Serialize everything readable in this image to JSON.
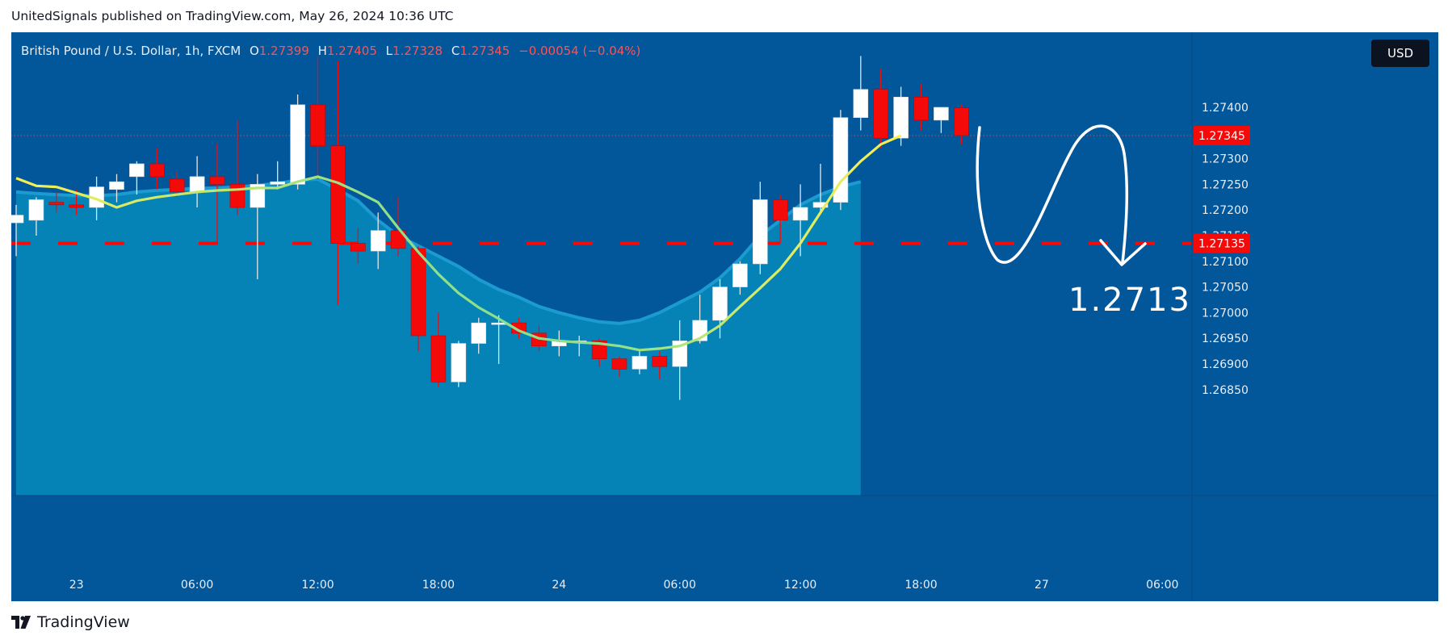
{
  "header": {
    "published_text": "UnitedSignals published on TradingView.com, May 26, 2024 10:36 UTC"
  },
  "legend": {
    "symbol": "British Pound / U.S. Dollar, 1h, FXCM",
    "o_label": "O",
    "o_value": "1.27399",
    "h_label": "H",
    "h_value": "1.27405",
    "l_label": "L",
    "l_value": "1.27328",
    "c_label": "C",
    "c_value": "1.27345",
    "change": "−0.00054 (−0.04%)"
  },
  "toolbar": {
    "currency_label": "USD"
  },
  "footer": {
    "logo_text": "TradingView"
  },
  "colors": {
    "background": "#02569a",
    "up_candle": "#ffffff",
    "down_candle": "#f50a0a",
    "fast_ma": "#f8ef50",
    "fast_ma_low": "#8ee08a",
    "slow_ma": "#1b9bd1",
    "area_fill": "#0586b8",
    "dash_line": "#f50a0a",
    "annotation": "#ffffff"
  },
  "chart_data": {
    "type": "candlestick",
    "yaxis": {
      "ticks": [
        1.274,
        1.273,
        1.2725,
        1.272,
        1.2715,
        1.271,
        1.2705,
        1.27,
        1.2695,
        1.269,
        1.2685
      ],
      "tick_labels": [
        "1.27400",
        "1.27300",
        "1.27250",
        "1.27200",
        "1.27150",
        "1.27100",
        "1.27050",
        "1.27000",
        "1.26950",
        "1.26900",
        "1.26850"
      ],
      "range": [
        1.2682,
        1.275
      ]
    },
    "xaxis": {
      "ticks": [
        {
          "bar": 3,
          "label": "23"
        },
        {
          "bar": 9,
          "label": "06:00"
        },
        {
          "bar": 15,
          "label": "12:00"
        },
        {
          "bar": 21,
          "label": "18:00"
        },
        {
          "bar": 27,
          "label": "24"
        },
        {
          "bar": 33,
          "label": "06:00"
        },
        {
          "bar": 39,
          "label": "12:00"
        },
        {
          "bar": 45,
          "label": "18:00"
        },
        {
          "bar": 51,
          "label": "27"
        },
        {
          "bar": 57,
          "label": "06:00"
        }
      ]
    },
    "candles": [
      {
        "o": 1.27175,
        "h": 1.2721,
        "l": 1.2711,
        "c": 1.2719
      },
      {
        "o": 1.2718,
        "h": 1.27225,
        "l": 1.2715,
        "c": 1.2722
      },
      {
        "o": 1.27215,
        "h": 1.27235,
        "l": 1.27195,
        "c": 1.2721
      },
      {
        "o": 1.2721,
        "h": 1.2724,
        "l": 1.2719,
        "c": 1.27205
      },
      {
        "o": 1.27205,
        "h": 1.27265,
        "l": 1.2718,
        "c": 1.27245
      },
      {
        "o": 1.2724,
        "h": 1.2727,
        "l": 1.27215,
        "c": 1.27255
      },
      {
        "o": 1.27265,
        "h": 1.27295,
        "l": 1.2723,
        "c": 1.2729
      },
      {
        "o": 1.2729,
        "h": 1.2732,
        "l": 1.2724,
        "c": 1.27265
      },
      {
        "o": 1.2726,
        "h": 1.27275,
        "l": 1.27225,
        "c": 1.27235
      },
      {
        "o": 1.27235,
        "h": 1.27305,
        "l": 1.27205,
        "c": 1.27265
      },
      {
        "o": 1.27265,
        "h": 1.2733,
        "l": 1.27135,
        "c": 1.2725
      },
      {
        "o": 1.2725,
        "h": 1.27375,
        "l": 1.2719,
        "c": 1.27205
      },
      {
        "o": 1.27205,
        "h": 1.2727,
        "l": 1.27065,
        "c": 1.2725
      },
      {
        "o": 1.2725,
        "h": 1.27295,
        "l": 1.2724,
        "c": 1.27255
      },
      {
        "o": 1.2725,
        "h": 1.27425,
        "l": 1.2724,
        "c": 1.27405
      },
      {
        "o": 1.27405,
        "h": 1.275,
        "l": 1.2726,
        "c": 1.27325
      },
      {
        "o": 1.27325,
        "h": 1.2749,
        "l": 1.27015,
        "c": 1.27135
      },
      {
        "o": 1.27135,
        "h": 1.27165,
        "l": 1.27095,
        "c": 1.2712
      },
      {
        "o": 1.2712,
        "h": 1.27195,
        "l": 1.27085,
        "c": 1.2716
      },
      {
        "o": 1.2716,
        "h": 1.27225,
        "l": 1.2711,
        "c": 1.27125
      },
      {
        "o": 1.27125,
        "h": 1.2713,
        "l": 1.26925,
        "c": 1.26955
      },
      {
        "o": 1.26955,
        "h": 1.27,
        "l": 1.26855,
        "c": 1.26865
      },
      {
        "o": 1.26865,
        "h": 1.26945,
        "l": 1.26855,
        "c": 1.2694
      },
      {
        "o": 1.2694,
        "h": 1.2699,
        "l": 1.2692,
        "c": 1.2698
      },
      {
        "o": 1.2698,
        "h": 1.26995,
        "l": 1.269,
        "c": 1.2698
      },
      {
        "o": 1.2698,
        "h": 1.2699,
        "l": 1.2695,
        "c": 1.2696
      },
      {
        "o": 1.2696,
        "h": 1.26975,
        "l": 1.26925,
        "c": 1.26935
      },
      {
        "o": 1.26935,
        "h": 1.26965,
        "l": 1.26915,
        "c": 1.26945
      },
      {
        "o": 1.26945,
        "h": 1.26955,
        "l": 1.26915,
        "c": 1.26945
      },
      {
        "o": 1.26945,
        "h": 1.2695,
        "l": 1.26895,
        "c": 1.2691
      },
      {
        "o": 1.2691,
        "h": 1.26915,
        "l": 1.26875,
        "c": 1.2689
      },
      {
        "o": 1.2689,
        "h": 1.26925,
        "l": 1.2688,
        "c": 1.26915
      },
      {
        "o": 1.26915,
        "h": 1.26925,
        "l": 1.2687,
        "c": 1.26895
      },
      {
        "o": 1.26895,
        "h": 1.26985,
        "l": 1.2683,
        "c": 1.26945
      },
      {
        "o": 1.26945,
        "h": 1.27035,
        "l": 1.2694,
        "c": 1.26985
      },
      {
        "o": 1.26985,
        "h": 1.27065,
        "l": 1.2695,
        "c": 1.2705
      },
      {
        "o": 1.2705,
        "h": 1.271,
        "l": 1.27035,
        "c": 1.27095
      },
      {
        "o": 1.27095,
        "h": 1.27255,
        "l": 1.27075,
        "c": 1.2722
      },
      {
        "o": 1.2722,
        "h": 1.2723,
        "l": 1.27135,
        "c": 1.2718
      },
      {
        "o": 1.2718,
        "h": 1.2725,
        "l": 1.2711,
        "c": 1.27205
      },
      {
        "o": 1.27205,
        "h": 1.2729,
        "l": 1.27195,
        "c": 1.27215
      },
      {
        "o": 1.27215,
        "h": 1.27395,
        "l": 1.272,
        "c": 1.2738
      },
      {
        "o": 1.2738,
        "h": 1.275,
        "l": 1.27355,
        "c": 1.27435
      },
      {
        "o": 1.27435,
        "h": 1.27475,
        "l": 1.2732,
        "c": 1.2734
      },
      {
        "o": 1.2734,
        "h": 1.2744,
        "l": 1.27325,
        "c": 1.2742
      },
      {
        "o": 1.2742,
        "h": 1.27445,
        "l": 1.27355,
        "c": 1.27375
      },
      {
        "o": 1.27375,
        "h": 1.274,
        "l": 1.2735,
        "c": 1.274
      },
      {
        "o": 1.27399,
        "h": 1.27405,
        "l": 1.27328,
        "c": 1.27345
      }
    ],
    "fast_ma": [
      1.27262,
      1.27247,
      1.27245,
      1.27233,
      1.27221,
      1.27205,
      1.27218,
      1.27225,
      1.2723,
      1.27235,
      1.27238,
      1.2724,
      1.27243,
      1.27243,
      1.27255,
      1.27265,
      1.27253,
      1.27235,
      1.27215,
      1.27165,
      1.27118,
      1.27075,
      1.27038,
      1.2701,
      1.26988,
      1.26965,
      1.2695,
      1.26945,
      1.26942,
      1.2694,
      1.26935,
      1.26927,
      1.2693,
      1.26935,
      1.2695,
      1.26975,
      1.27012,
      1.27048,
      1.27085,
      1.27135,
      1.27195,
      1.27255,
      1.27295,
      1.27328,
      1.27345
    ],
    "slow_ma": [
      1.27235,
      1.27232,
      1.2723,
      1.27228,
      1.27228,
      1.2723,
      1.27235,
      1.27238,
      1.2724,
      1.27242,
      1.27243,
      1.27245,
      1.27248,
      1.27252,
      1.27258,
      1.2726,
      1.2724,
      1.27218,
      1.2718,
      1.2715,
      1.2713,
      1.2711,
      1.2709,
      1.27065,
      1.27045,
      1.2703,
      1.27012,
      1.27,
      1.2699,
      1.26982,
      1.26979,
      1.26985,
      1.27,
      1.2702,
      1.2704,
      1.27068,
      1.27105,
      1.2715,
      1.2718,
      1.2721,
      1.2723,
      1.27245,
      1.27255
    ],
    "fast_ma_start_bar": 0,
    "slow_ma_start_bar": 0,
    "last_price": {
      "value": 1.27345,
      "label": "1.27345"
    },
    "target_line": {
      "value": 1.27135,
      "label": "1.27135"
    },
    "annotation": {
      "text": "1.2713"
    }
  }
}
